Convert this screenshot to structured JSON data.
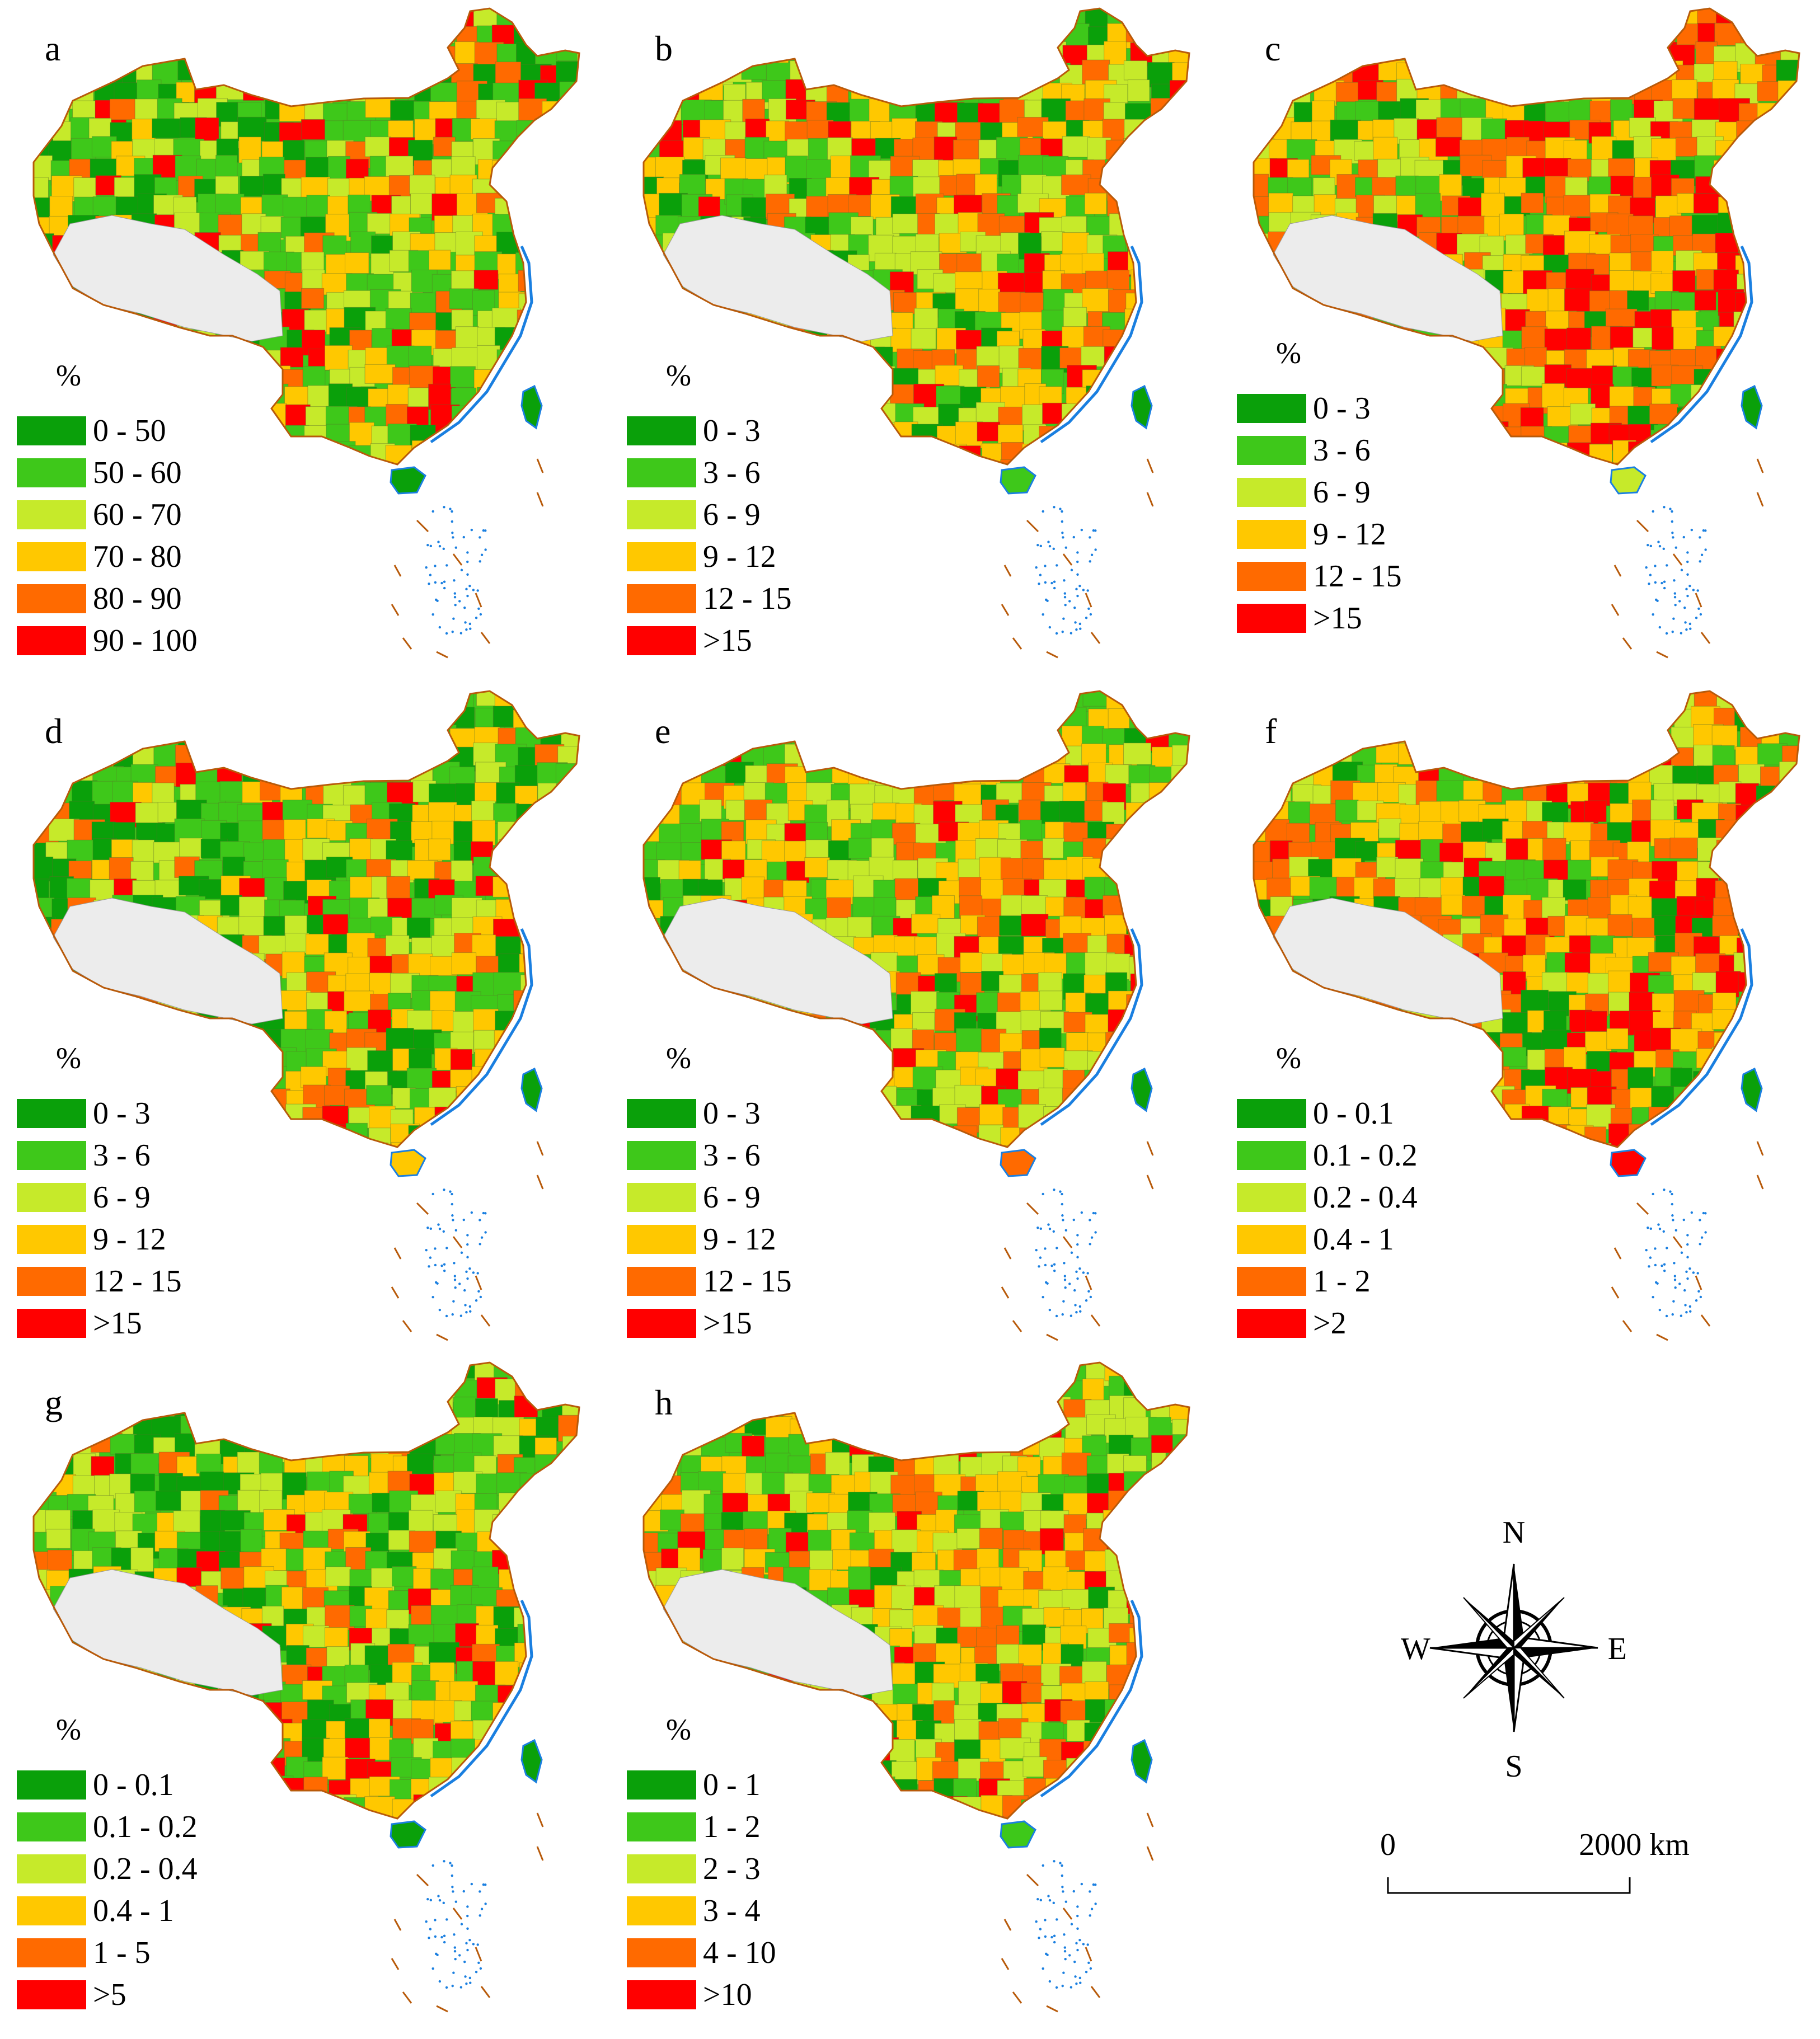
{
  "colors": {
    "c1": "#0aa00a",
    "c2": "#3ec81a",
    "c3": "#c6ea2a",
    "c4": "#ffc800",
    "c5": "#ff6a00",
    "c6": "#ff0000",
    "tibet": "#ececec",
    "border": "#b85a0a",
    "coast": "#1a7fe0",
    "islands": "#1a7fe0",
    "admin": "#5a6e2a"
  },
  "panels": [
    {
      "label": "a",
      "unit": "%",
      "classes": [
        "0 - 50",
        "50 - 60",
        "60 - 70",
        "70 - 80",
        "80 - 90",
        "90 - 100"
      ]
    },
    {
      "label": "b",
      "unit": "%",
      "classes": [
        "0 - 3",
        "3 - 6",
        "6 - 9",
        "9 - 12",
        "12 - 15",
        ">15"
      ]
    },
    {
      "label": "c",
      "unit": "%",
      "classes": [
        "0 - 3",
        "3 - 6",
        "6 - 9",
        "9 - 12",
        "12 - 15",
        ">15"
      ]
    },
    {
      "label": "d",
      "unit": "%",
      "classes": [
        "0 - 3",
        "3 - 6",
        "6 - 9",
        "9 - 12",
        "12 - 15",
        ">15"
      ]
    },
    {
      "label": "e",
      "unit": "%",
      "classes": [
        "0 - 3",
        "3 - 6",
        "6 - 9",
        "9 - 12",
        "12 - 15",
        ">15"
      ]
    },
    {
      "label": "f",
      "unit": "%",
      "classes": [
        "0 - 0.1",
        "0.1 - 0.2",
        "0.2 - 0.4",
        "0.4 - 1",
        "1 - 2",
        ">2"
      ]
    },
    {
      "label": "g",
      "unit": "%",
      "classes": [
        "0 - 0.1",
        "0.1 - 0.2",
        "0.2 - 0.4",
        "0.4 - 1",
        "1 - 5",
        ">5"
      ]
    },
    {
      "label": "h",
      "unit": "%",
      "classes": [
        "0 - 1",
        "1 - 2",
        "2 - 3",
        "3 - 4",
        "4 - 10",
        ">10"
      ]
    }
  ],
  "compass": {
    "n": "N",
    "s": "S",
    "e": "E",
    "w": "W"
  },
  "scale": {
    "start": "0",
    "end": "2000 km"
  }
}
